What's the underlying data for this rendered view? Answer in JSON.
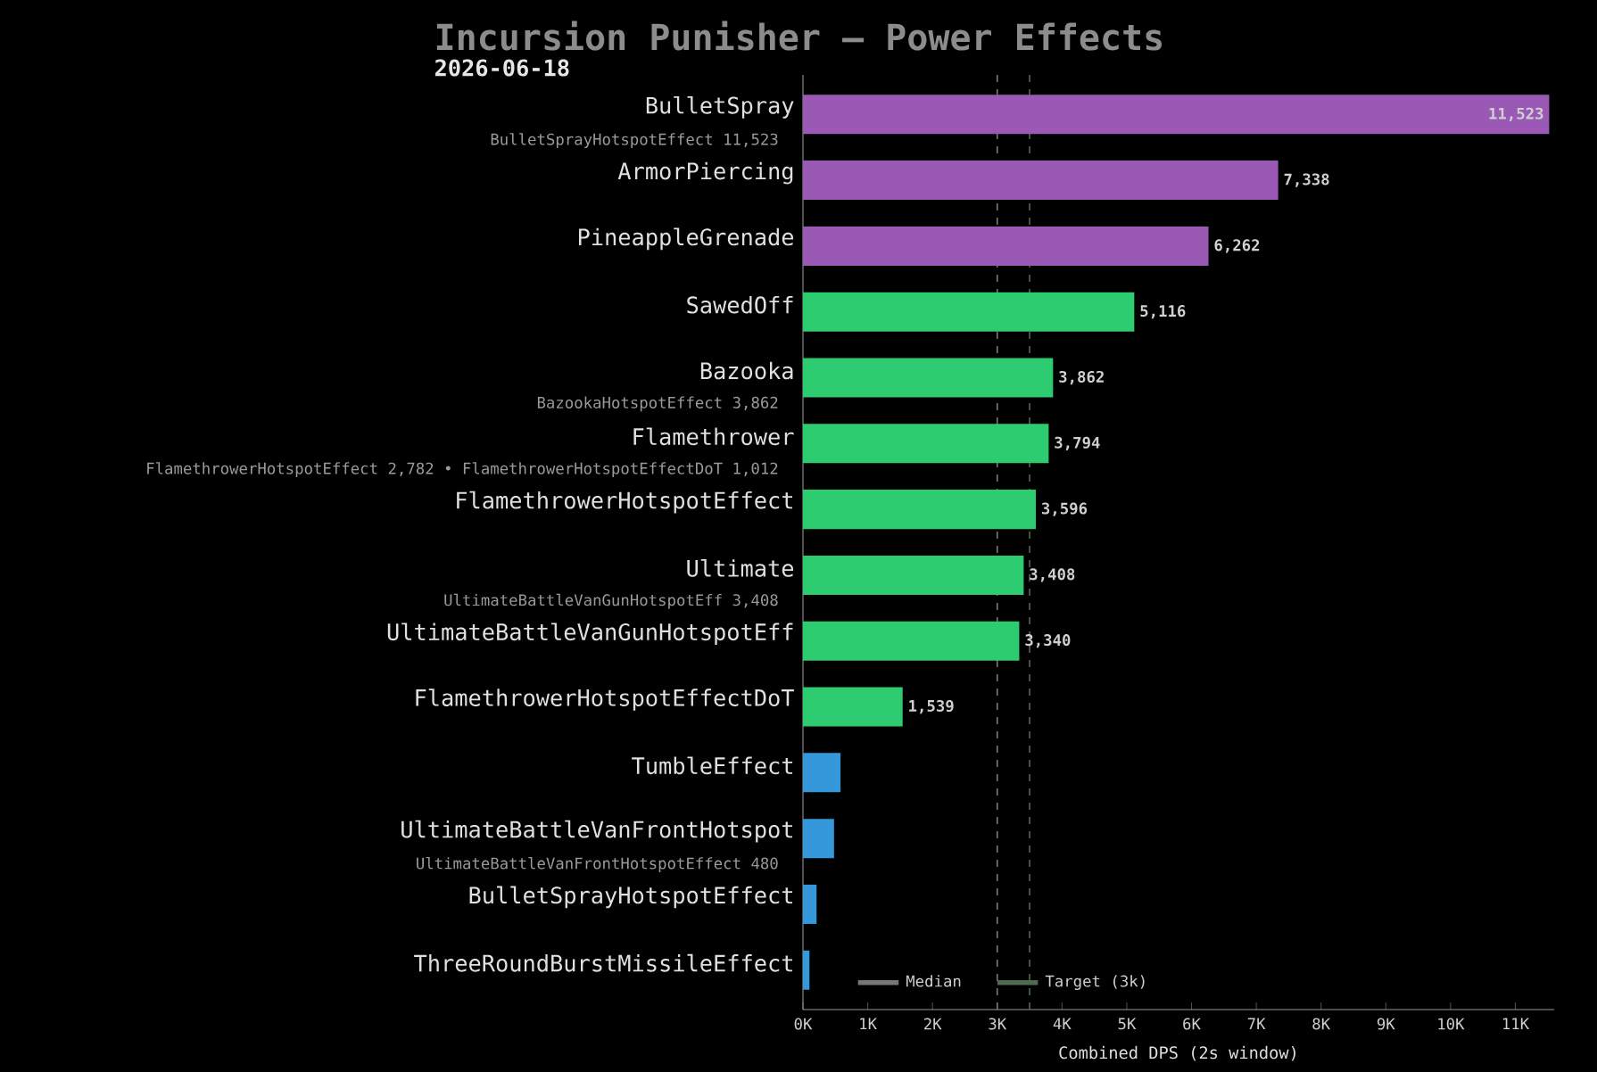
{
  "chart_data": {
    "type": "bar",
    "orientation": "horizontal",
    "title": "Incursion Punisher — Power Effects",
    "subtitle": "2026-06-18",
    "xlabel": "Combined DPS (2s window)",
    "categories": [
      "BulletSpray",
      "ArmorPiercing",
      "PineappleGrenade",
      "SawedOff",
      "Bazooka",
      "Flamethrower",
      "FlamethrowerHotspotEffect",
      "Ultimate",
      "UltimateBattleVanGunHotspotEff",
      "FlamethrowerHotspotEffectDoT",
      "TumbleEffect",
      "UltimateBattleVanFrontHotspot",
      "BulletSprayHotspotEffect",
      "ThreeRoundBurstMissileEffect"
    ],
    "values": [
      11523,
      7338,
      6262,
      5116,
      3862,
      3794,
      3596,
      3408,
      3340,
      1539,
      580,
      480,
      210,
      100
    ],
    "colors": [
      "#9b59b6",
      "#9b59b6",
      "#9b59b6",
      "#2ecc71",
      "#2ecc71",
      "#2ecc71",
      "#2ecc71",
      "#2ecc71",
      "#2ecc71",
      "#2ecc71",
      "#3498db",
      "#3498db",
      "#3498db",
      "#3498db"
    ],
    "value_labels": [
      "11,523",
      "7,338",
      "6,262",
      "5,116",
      "3,862",
      "3,794",
      "3,596",
      "3,408",
      "3,340",
      "1,539",
      null,
      null,
      null,
      null
    ],
    "xlim": [
      0,
      11600
    ],
    "xticks": [
      {
        "value": 0,
        "label": "0K"
      },
      {
        "value": 1000,
        "label": "1K"
      },
      {
        "value": 2000,
        "label": "2K"
      },
      {
        "value": 3000,
        "label": "3K"
      },
      {
        "value": 4000,
        "label": "4K"
      },
      {
        "value": 5000,
        "label": "5K"
      },
      {
        "value": 6000,
        "label": "6K"
      },
      {
        "value": 7000,
        "label": "7K"
      },
      {
        "value": 8000,
        "label": "8K"
      },
      {
        "value": 9000,
        "label": "9K"
      },
      {
        "value": 10000,
        "label": "10K"
      },
      {
        "value": 11000,
        "label": "11K"
      }
    ],
    "ref_lines": [
      {
        "axis": "x",
        "value": 3000,
        "label": "Median",
        "color": "#777777",
        "line_style": "dashed"
      },
      {
        "axis": "x",
        "value": 3500,
        "label": "Target (3k)",
        "color": "#4f6b4f",
        "line_style": "dashed"
      }
    ],
    "legend": "bottom left",
    "annotations": [
      "BulletSprayHotspotEffect 11,523",
      "BazookaHotspotEffect 3,862",
      "FlamethrowerHotspotEffect 2,782  •  FlamethrowerHotspotEffectDoT 1,012",
      "UltimateBattleVanGunHotspotEff 3,408",
      "UltimateBattleVanFrontHotspotEffect 480"
    ]
  }
}
